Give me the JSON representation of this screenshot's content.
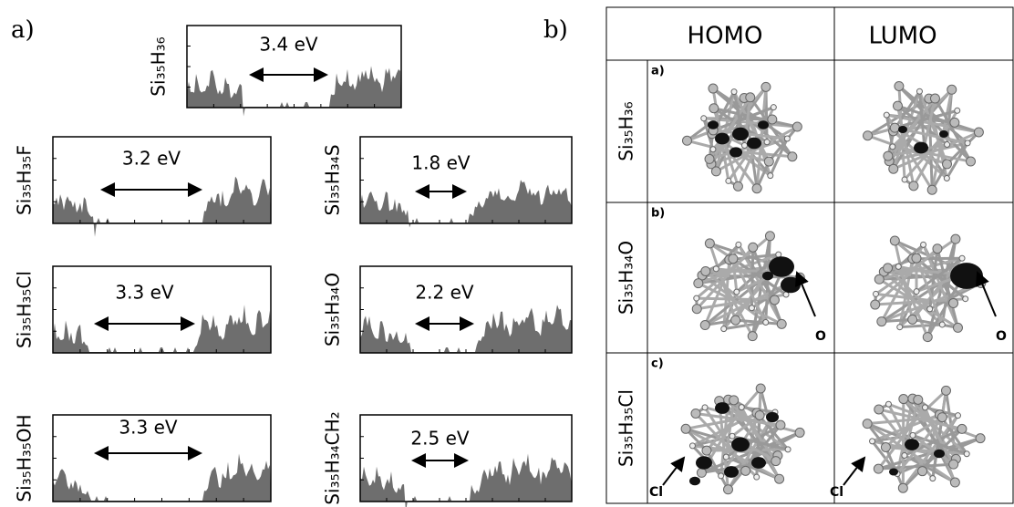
{
  "panel_a": {
    "label": "a)",
    "spectra": [
      {
        "formula": "Si₃₅H₃₆",
        "gap": "3.4 eV"
      },
      {
        "formula": "Si₃₅H₃₅F",
        "gap": "3.2 eV"
      },
      {
        "formula": "Si₃₅H₃₅Cl",
        "gap": "3.3 eV"
      },
      {
        "formula": "Si₃₅H₃₅OH",
        "gap": "3.3 eV"
      },
      {
        "formula": "Si₃₅H₃₄S",
        "gap": "1.8 eV"
      },
      {
        "formula": "Si₃₅H₃₄O",
        "gap": "2.2 eV"
      },
      {
        "formula": "Si₃₅H₃₄CH₂",
        "gap": "2.5 eV"
      }
    ]
  },
  "panel_b": {
    "label": "b)",
    "columns": [
      "HOMO",
      "LUMO"
    ],
    "rows": [
      {
        "label": "a)",
        "formula": "Si₃₅H₃₆"
      },
      {
        "label": "b)",
        "formula": "Si₃₅H₃₄O",
        "annotation": "O"
      },
      {
        "label": "c)",
        "formula": "Si₃₅H₃₅Cl",
        "annotation": "Cl"
      }
    ]
  }
}
